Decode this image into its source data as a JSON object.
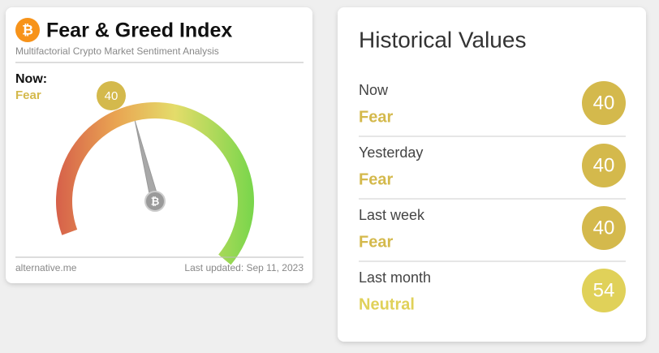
{
  "gauge_widget": {
    "logo_symbol": "₿",
    "title": "Fear & Greed Index",
    "subtitle": "Multifactorial Crypto Market Sentiment Analysis",
    "now_label": "Now:",
    "classification": "Fear",
    "value": 40,
    "lim": [
      0,
      100
    ],
    "color": "#d4b94c",
    "footer_left": "alternative.me",
    "footer_right": "Last updated: Sep 11, 2023"
  },
  "historical": {
    "title": "Historical Values",
    "rows": [
      {
        "label": "Now",
        "classification": "Fear",
        "value": 40,
        "color": "#d4b94c"
      },
      {
        "label": "Yesterday",
        "classification": "Fear",
        "value": 40,
        "color": "#d4b94c"
      },
      {
        "label": "Last week",
        "classification": "Fear",
        "value": 40,
        "color": "#d4b94c"
      },
      {
        "label": "Last month",
        "classification": "Neutral",
        "value": 54,
        "color": "#e0d159"
      }
    ]
  }
}
